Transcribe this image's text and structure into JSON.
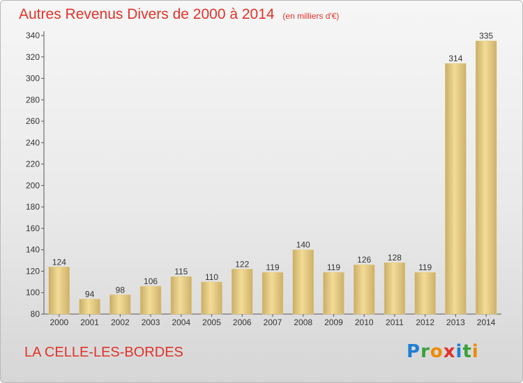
{
  "header": {
    "title": "Autres Revenus Divers de 2000 à 2014",
    "subtitle": "(en milliers d'€)"
  },
  "footer": {
    "place": "LA CELLE-LES-BORDES",
    "logo_text": "Proxiti"
  },
  "colors": {
    "title": "#e0332a",
    "bar_light": "#f3dc96",
    "bar_dark": "#c9ad67"
  },
  "chart_data": {
    "type": "bar",
    "title": "Autres Revenus Divers de 2000 à 2014",
    "subtitle": "(en milliers d'€)",
    "categories": [
      "2000",
      "2001",
      "2002",
      "2003",
      "2004",
      "2005",
      "2006",
      "2007",
      "2008",
      "2009",
      "2010",
      "2011",
      "2012",
      "2013",
      "2014"
    ],
    "values": [
      124,
      94,
      98,
      106,
      115,
      110,
      122,
      119,
      140,
      119,
      126,
      128,
      119,
      314,
      335
    ],
    "value_labels": [
      "124",
      "94",
      "98",
      "106",
      "115",
      "110",
      "122",
      "119",
      "140",
      "119",
      "126",
      "128",
      "119",
      "314",
      "335"
    ],
    "ylim": [
      80,
      340
    ],
    "yticks": [
      "80",
      "100",
      "120",
      "140",
      "160",
      "180",
      "200",
      "220",
      "240",
      "260",
      "280",
      "300",
      "320",
      "340"
    ],
    "grid": false,
    "xlabel": "",
    "ylabel": ""
  }
}
